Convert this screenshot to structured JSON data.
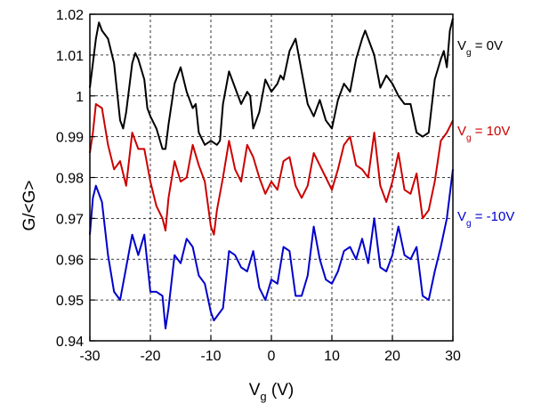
{
  "chart_data": {
    "type": "line",
    "xlabel": {
      "main": "V",
      "sub": "g",
      "unit": " (V)"
    },
    "ylabel": "G/<G>",
    "xlim": [
      -30,
      30
    ],
    "ylim": [
      0.94,
      1.02
    ],
    "xticks": [
      -30,
      -20,
      -10,
      0,
      10,
      20,
      30
    ],
    "xtick_labels": [
      "-30",
      "-20",
      "-10",
      "0",
      "10",
      "20",
      "30"
    ],
    "yticks": [
      0.94,
      0.95,
      0.96,
      0.97,
      0.98,
      0.99,
      1.0,
      1.01,
      1.02
    ],
    "ytick_labels": [
      "0.94",
      "0.95",
      "0.96",
      "0.97",
      "0.98",
      "0.99",
      "1",
      "1.01",
      "1.02"
    ],
    "grid": "dashed",
    "series": [
      {
        "label": {
          "main": "V",
          "sub": "g",
          "rest": " = 0V"
        },
        "color": "#000000",
        "x": [
          -30,
          -29,
          -28.5,
          -28,
          -27,
          -26,
          -25,
          -24.5,
          -24,
          -23,
          -22.5,
          -22,
          -21,
          -20.5,
          -20,
          -19,
          -18,
          -17.5,
          -17,
          -16,
          -15,
          -14,
          -13,
          -12.5,
          -12,
          -11,
          -10,
          -9,
          -8.5,
          -8,
          -7,
          -6,
          -5,
          -4,
          -3.5,
          -3,
          -2,
          -1,
          0,
          1,
          1.5,
          2,
          3,
          4,
          5,
          6,
          7,
          8,
          9,
          10,
          11,
          12,
          13,
          14,
          15,
          15.5,
          16,
          17,
          18,
          19,
          20,
          21,
          22,
          23,
          24,
          25,
          26,
          27,
          28,
          28.5,
          29,
          29.5,
          30
        ],
        "y": [
          1.002,
          1.014,
          1.018,
          1.016,
          1.014,
          1.008,
          0.994,
          0.992,
          0.996,
          1.008,
          1.0105,
          1.009,
          1.004,
          0.997,
          0.995,
          0.992,
          0.987,
          0.987,
          0.993,
          1.003,
          1.007,
          1.001,
          0.997,
          0.998,
          0.991,
          0.988,
          0.989,
          0.988,
          0.989,
          0.998,
          1.006,
          1.002,
          0.998,
          1.001,
          1.0,
          0.992,
          0.996,
          1.004,
          1.001,
          1.003,
          1.005,
          1.004,
          1.011,
          1.014,
          1.006,
          0.998,
          0.995,
          0.999,
          0.994,
          0.992,
          0.999,
          1.003,
          1.001,
          1.009,
          1.014,
          1.016,
          1.014,
          1.01,
          1.002,
          1.005,
          1.003,
          1.0,
          0.998,
          0.998,
          0.991,
          0.99,
          0.991,
          1.004,
          1.009,
          1.011,
          1.007,
          1.016,
          1.019
        ]
      },
      {
        "label": {
          "main": "V",
          "sub": "g",
          "rest": " = 10V"
        },
        "color": "#cc0000",
        "x": [
          -30,
          -29.5,
          -29,
          -28,
          -27,
          -26,
          -25,
          -24,
          -23,
          -22,
          -21,
          -20,
          -19,
          -18,
          -17.5,
          -17,
          -16,
          -15,
          -14,
          -13,
          -12,
          -11,
          -10,
          -9.5,
          -9,
          -8,
          -7,
          -6,
          -5,
          -4,
          -3,
          -2,
          -1,
          0,
          1,
          2,
          3,
          4,
          5,
          6,
          7,
          8,
          9,
          10,
          11,
          12,
          13,
          14,
          15,
          16,
          17,
          18,
          19,
          20,
          21,
          22,
          23,
          24,
          25,
          26,
          27,
          28,
          29,
          30
        ],
        "y": [
          0.986,
          0.991,
          0.998,
          0.997,
          0.988,
          0.982,
          0.984,
          0.978,
          0.991,
          0.987,
          0.987,
          0.979,
          0.973,
          0.97,
          0.967,
          0.975,
          0.984,
          0.979,
          0.98,
          0.988,
          0.983,
          0.979,
          0.968,
          0.966,
          0.972,
          0.98,
          0.989,
          0.982,
          0.979,
          0.988,
          0.985,
          0.98,
          0.976,
          0.979,
          0.977,
          0.984,
          0.985,
          0.978,
          0.975,
          0.978,
          0.986,
          0.983,
          0.98,
          0.977,
          0.982,
          0.988,
          0.99,
          0.983,
          0.982,
          0.98,
          0.991,
          0.978,
          0.974,
          0.979,
          0.986,
          0.977,
          0.976,
          0.981,
          0.97,
          0.972,
          0.979,
          0.989,
          0.991,
          0.994
        ]
      },
      {
        "label": {
          "main": "V",
          "sub": "g",
          "rest": " = -10V"
        },
        "color": "#0000cc",
        "x": [
          -30,
          -29.5,
          -29,
          -28,
          -27,
          -26,
          -25,
          -24,
          -23,
          -22,
          -21,
          -20,
          -19,
          -18,
          -17.5,
          -17,
          -16,
          -15,
          -14,
          -13,
          -12,
          -11,
          -10,
          -9.5,
          -9,
          -8,
          -7,
          -6,
          -5,
          -4,
          -3,
          -2,
          -1,
          0,
          1,
          2,
          3,
          4,
          5,
          6,
          7,
          8,
          9,
          10,
          11,
          12,
          13,
          14,
          15,
          16,
          17,
          18,
          19,
          20,
          21,
          22,
          23,
          24,
          25,
          26,
          27,
          28,
          29,
          30
        ],
        "y": [
          0.966,
          0.975,
          0.978,
          0.974,
          0.961,
          0.952,
          0.95,
          0.958,
          0.966,
          0.961,
          0.966,
          0.952,
          0.952,
          0.951,
          0.943,
          0.948,
          0.961,
          0.959,
          0.965,
          0.963,
          0.956,
          0.954,
          0.947,
          0.945,
          0.946,
          0.948,
          0.962,
          0.961,
          0.958,
          0.957,
          0.962,
          0.953,
          0.95,
          0.955,
          0.954,
          0.963,
          0.962,
          0.951,
          0.951,
          0.956,
          0.968,
          0.96,
          0.955,
          0.954,
          0.957,
          0.962,
          0.963,
          0.96,
          0.965,
          0.959,
          0.97,
          0.958,
          0.957,
          0.961,
          0.968,
          0.961,
          0.96,
          0.963,
          0.951,
          0.95,
          0.957,
          0.963,
          0.97,
          0.982
        ]
      }
    ]
  }
}
